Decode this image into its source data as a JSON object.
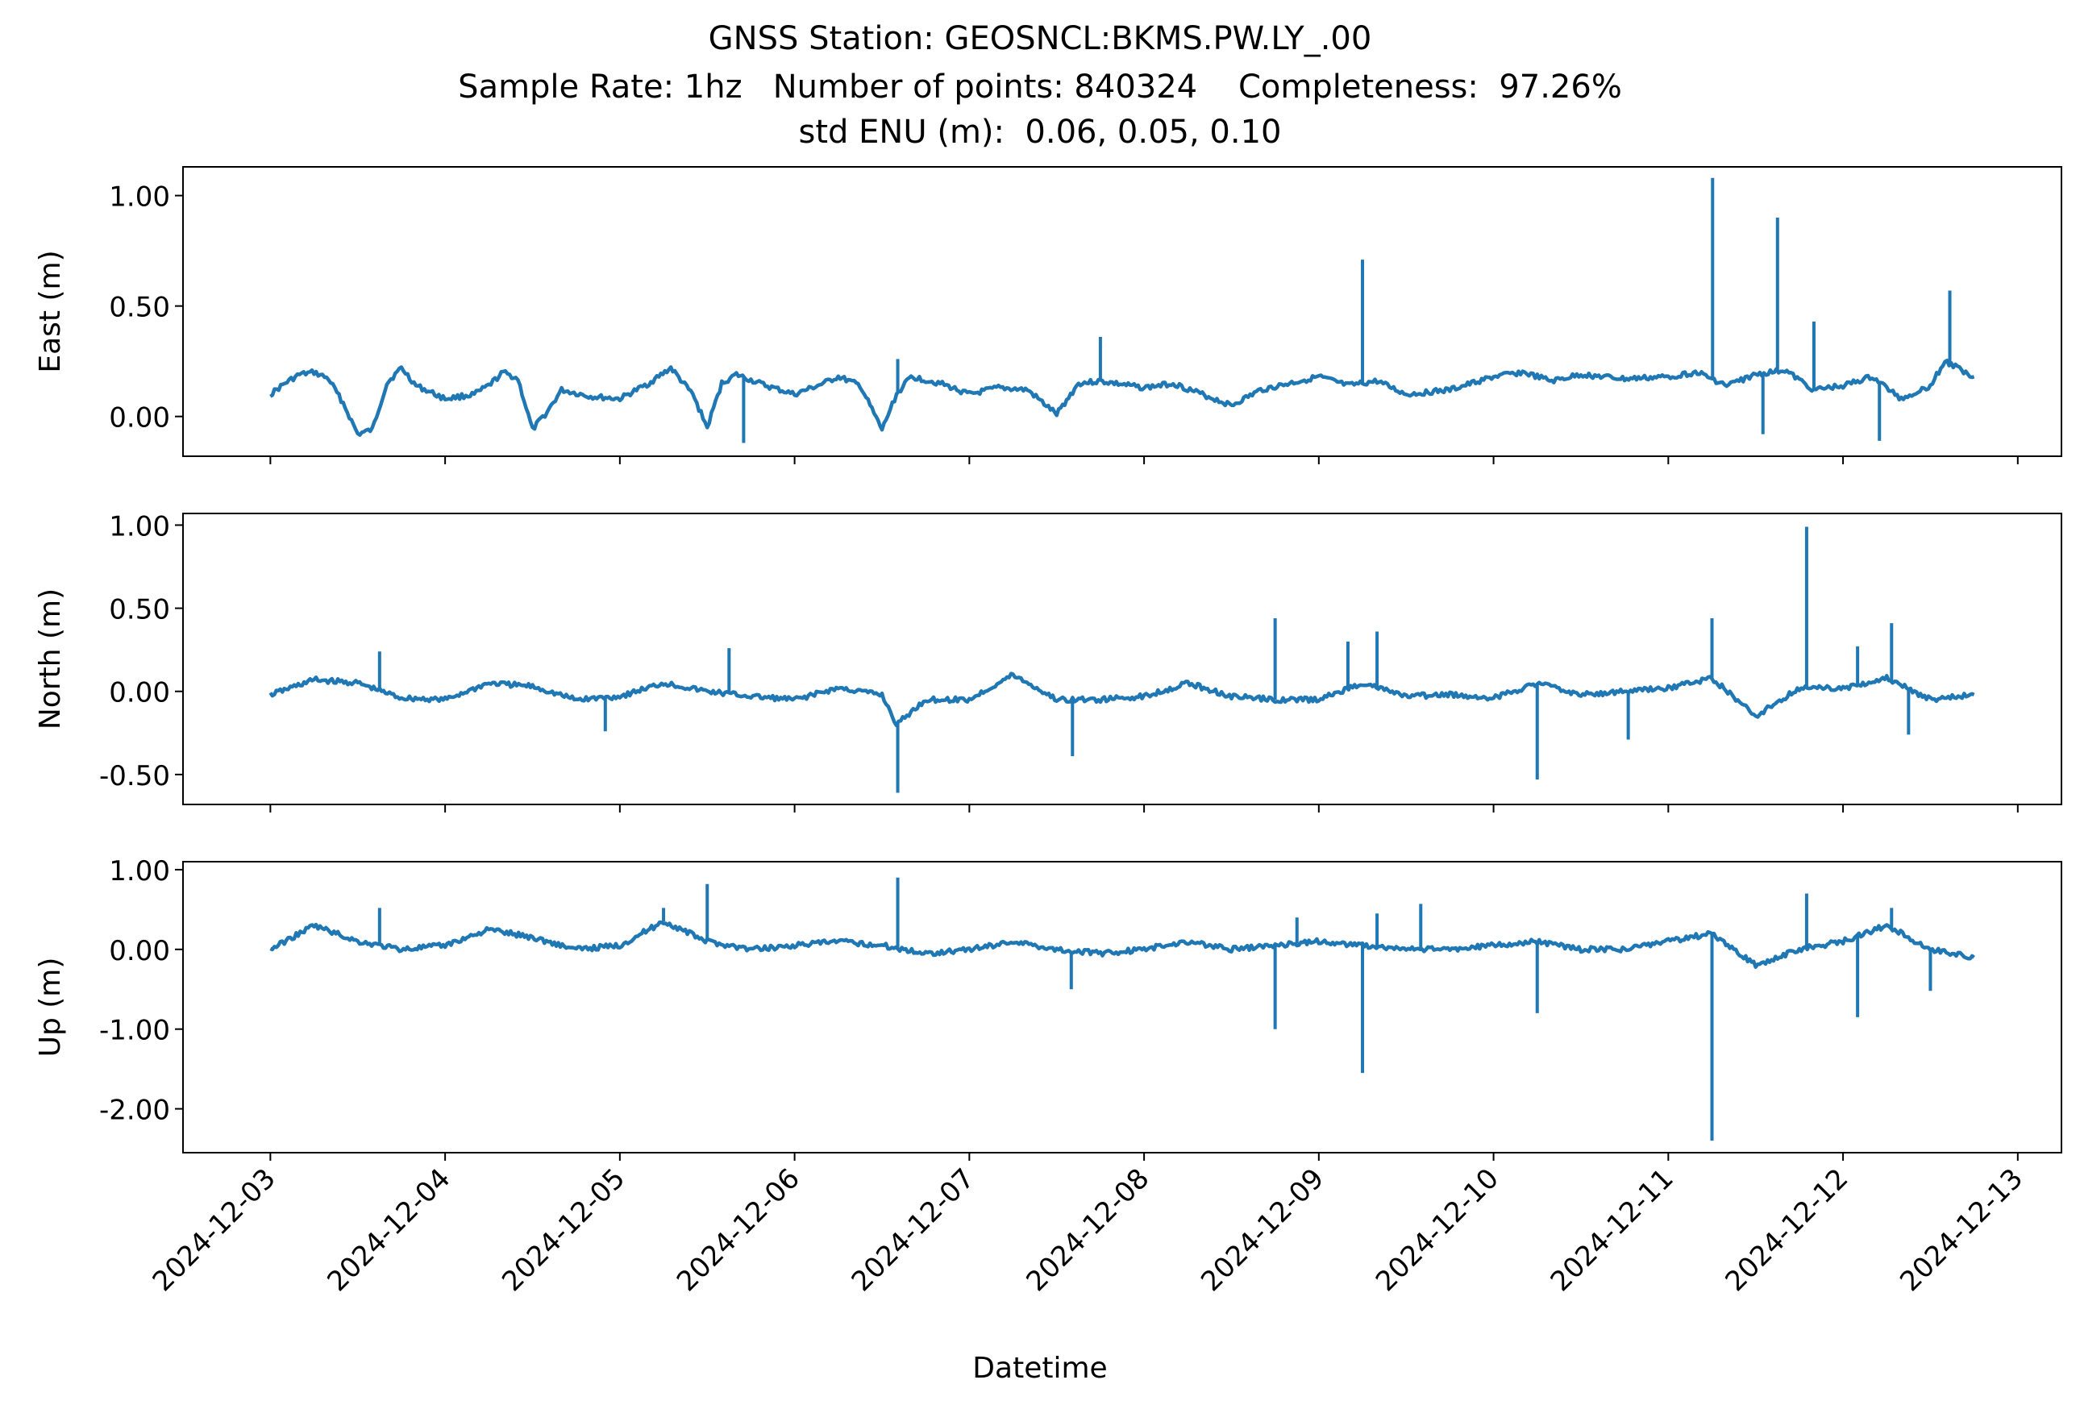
{
  "title": "GNSS Station: GEOSNCL:BKMS.PW.LY_.00",
  "subtitle": "Sample Rate: 1hz   Number of points: 840324    Completeness:  97.26%",
  "subtitle2": "std ENU (m):  0.06, 0.05, 0.10",
  "colors": {
    "series": "#1f77b4",
    "axes": "#000000",
    "background": "#ffffff"
  },
  "chart_data": [
    {
      "type": "line",
      "ylabel": "East (m)",
      "xlabel": "",
      "x_range": [
        "2024-12-03T00:00",
        "2024-12-12T18:00"
      ],
      "xlim": [
        "2024-12-02T12:00",
        "2024-12-13T06:00"
      ],
      "ylim": [
        -0.18,
        1.13
      ],
      "yticks": [
        0.0,
        0.5,
        1.0
      ],
      "ytick_labels": [
        "0.00",
        "0.50",
        "1.00"
      ],
      "grid": false,
      "series": [
        {
          "values": [
            [
              "2024-12-03T00:00",
              0.1
            ],
            [
              "2024-12-03T02:00",
              0.15
            ],
            [
              "2024-12-03T04:00",
              0.19
            ],
            [
              "2024-12-03T06:00",
              0.2
            ],
            [
              "2024-12-03T08:00",
              0.17
            ],
            [
              "2024-12-03T10:00",
              0.06
            ],
            [
              "2024-12-03T12:00",
              -0.08
            ],
            [
              "2024-12-03T14:00",
              -0.06
            ],
            [
              "2024-12-03T16:00",
              0.15
            ],
            [
              "2024-12-03T18:00",
              0.22
            ],
            [
              "2024-12-03T20:00",
              0.14
            ],
            [
              "2024-12-04T00:00",
              0.08
            ],
            [
              "2024-12-04T04:00",
              0.1
            ],
            [
              "2024-12-04T06:00",
              0.14
            ],
            [
              "2024-12-04T08:00",
              0.2
            ],
            [
              "2024-12-04T10:00",
              0.17
            ],
            [
              "2024-12-04T12:00",
              -0.06
            ],
            [
              "2024-12-04T14:00",
              0.02
            ],
            [
              "2024-12-04T16:00",
              0.12
            ],
            [
              "2024-12-04T20:00",
              0.09
            ],
            [
              "2024-12-05T00:00",
              0.08
            ],
            [
              "2024-12-05T04:00",
              0.15
            ],
            [
              "2024-12-05T07:00",
              0.22
            ],
            [
              "2024-12-05T10:00",
              0.1
            ],
            [
              "2024-12-05T12:00",
              -0.05
            ],
            [
              "2024-12-05T14:00",
              0.15
            ],
            [
              "2024-12-05T16:00",
              0.19
            ],
            [
              "2024-12-05T20:00",
              0.14
            ],
            [
              "2024-12-06T00:00",
              0.1
            ],
            [
              "2024-12-06T04:00",
              0.15
            ],
            [
              "2024-12-06T06:00",
              0.18
            ],
            [
              "2024-12-06T09:00",
              0.14
            ],
            [
              "2024-12-06T12:00",
              -0.06
            ],
            [
              "2024-12-06T14:00",
              0.1
            ],
            [
              "2024-12-06T16:00",
              0.18
            ],
            [
              "2024-12-06T20:00",
              0.15
            ],
            [
              "2024-12-07T00:00",
              0.1
            ],
            [
              "2024-12-07T04:00",
              0.13
            ],
            [
              "2024-12-07T08:00",
              0.12
            ],
            [
              "2024-12-07T12:00",
              0.01
            ],
            [
              "2024-12-07T15:00",
              0.15
            ],
            [
              "2024-12-07T18:00",
              0.16
            ],
            [
              "2024-12-08T00:00",
              0.13
            ],
            [
              "2024-12-08T04:00",
              0.15
            ],
            [
              "2024-12-08T08:00",
              0.1
            ],
            [
              "2024-12-08T12:00",
              0.05
            ],
            [
              "2024-12-08T16:00",
              0.12
            ],
            [
              "2024-12-08T20:00",
              0.15
            ],
            [
              "2024-12-09T00:00",
              0.18
            ],
            [
              "2024-12-09T04:00",
              0.14
            ],
            [
              "2024-12-09T08:00",
              0.16
            ],
            [
              "2024-12-09T12:00",
              0.1
            ],
            [
              "2024-12-09T18:00",
              0.12
            ],
            [
              "2024-12-10T00:00",
              0.18
            ],
            [
              "2024-12-10T04:00",
              0.2
            ],
            [
              "2024-12-10T08:00",
              0.16
            ],
            [
              "2024-12-10T12:00",
              0.19
            ],
            [
              "2024-12-10T18:00",
              0.17
            ],
            [
              "2024-12-11T00:00",
              0.18
            ],
            [
              "2024-12-11T04:00",
              0.2
            ],
            [
              "2024-12-11T08:00",
              0.14
            ],
            [
              "2024-12-11T12:00",
              0.19
            ],
            [
              "2024-12-11T16:00",
              0.21
            ],
            [
              "2024-12-11T20:00",
              0.12
            ],
            [
              "2024-12-12T00:00",
              0.14
            ],
            [
              "2024-12-12T04:00",
              0.18
            ],
            [
              "2024-12-12T08:00",
              0.08
            ],
            [
              "2024-12-12T12:00",
              0.14
            ],
            [
              "2024-12-12T14:00",
              0.25
            ],
            [
              "2024-12-12T18:00",
              0.18
            ]
          ],
          "spikes": [
            [
              "2024-12-06T14:10",
              0.26
            ],
            [
              "2024-12-07T18:00",
              0.36
            ],
            [
              "2024-12-09T06:00",
              0.71
            ],
            [
              "2024-12-11T06:05",
              1.08
            ],
            [
              "2024-12-11T15:00",
              0.9
            ],
            [
              "2024-12-11T20:00",
              0.43
            ],
            [
              "2024-12-12T14:40",
              0.57
            ],
            [
              "2024-12-05T17:00",
              -0.12
            ],
            [
              "2024-12-11T13:00",
              -0.08
            ],
            [
              "2024-12-12T05:00",
              -0.11
            ]
          ]
        }
      ]
    },
    {
      "type": "line",
      "ylabel": "North (m)",
      "xlabel": "",
      "xlim": [
        "2024-12-02T12:00",
        "2024-12-13T06:00"
      ],
      "ylim": [
        -0.68,
        1.07
      ],
      "yticks": [
        -0.5,
        0.0,
        0.5,
        1.0
      ],
      "ytick_labels": [
        "-0.50",
        "0.00",
        "0.50",
        "1.00"
      ],
      "grid": false,
      "series": [
        {
          "values": [
            [
              "2024-12-03T00:00",
              -0.02
            ],
            [
              "2024-12-03T06:00",
              0.07
            ],
            [
              "2024-12-03T12:00",
              0.05
            ],
            [
              "2024-12-03T18:00",
              -0.04
            ],
            [
              "2024-12-04T00:00",
              -0.05
            ],
            [
              "2024-12-04T06:00",
              0.05
            ],
            [
              "2024-12-04T12:00",
              0.03
            ],
            [
              "2024-12-04T18:00",
              -0.05
            ],
            [
              "2024-12-05T00:00",
              -0.03
            ],
            [
              "2024-12-05T06:00",
              0.05
            ],
            [
              "2024-12-05T12:00",
              0.0
            ],
            [
              "2024-12-05T18:00",
              -0.03
            ],
            [
              "2024-12-06T00:00",
              -0.05
            ],
            [
              "2024-12-06T06:00",
              0.02
            ],
            [
              "2024-12-06T12:00",
              -0.02
            ],
            [
              "2024-12-06T14:00",
              -0.2
            ],
            [
              "2024-12-06T18:00",
              -0.05
            ],
            [
              "2024-12-07T00:00",
              -0.05
            ],
            [
              "2024-12-07T06:00",
              0.1
            ],
            [
              "2024-12-07T12:00",
              -0.05
            ],
            [
              "2024-12-07T18:00",
              -0.05
            ],
            [
              "2024-12-08T00:00",
              -0.03
            ],
            [
              "2024-12-08T06:00",
              0.05
            ],
            [
              "2024-12-08T12:00",
              -0.03
            ],
            [
              "2024-12-08T18:00",
              -0.05
            ],
            [
              "2024-12-09T00:00",
              -0.05
            ],
            [
              "2024-12-09T06:00",
              0.05
            ],
            [
              "2024-12-09T12:00",
              -0.03
            ],
            [
              "2024-12-09T18:00",
              -0.02
            ],
            [
              "2024-12-10T00:00",
              -0.04
            ],
            [
              "2024-12-10T06:00",
              0.05
            ],
            [
              "2024-12-10T12:00",
              -0.02
            ],
            [
              "2024-12-10T18:00",
              0.0
            ],
            [
              "2024-12-11T00:00",
              0.02
            ],
            [
              "2024-12-11T06:00",
              0.08
            ],
            [
              "2024-12-11T12:00",
              -0.15
            ],
            [
              "2024-12-11T18:00",
              0.02
            ],
            [
              "2024-12-12T00:00",
              0.02
            ],
            [
              "2024-12-12T06:00",
              0.08
            ],
            [
              "2024-12-12T12:00",
              -0.05
            ],
            [
              "2024-12-12T18:00",
              -0.02
            ]
          ],
          "spikes": [
            [
              "2024-12-03T15:00",
              0.24
            ],
            [
              "2024-12-05T15:00",
              0.26
            ],
            [
              "2024-12-08T18:00",
              0.44
            ],
            [
              "2024-12-09T04:00",
              0.3
            ],
            [
              "2024-12-09T08:00",
              0.36
            ],
            [
              "2024-12-11T06:00",
              0.44
            ],
            [
              "2024-12-11T19:00",
              0.99
            ],
            [
              "2024-12-12T02:00",
              0.27
            ],
            [
              "2024-12-12T06:40",
              0.41
            ],
            [
              "2024-12-06T14:10",
              -0.61
            ],
            [
              "2024-12-07T14:10",
              -0.39
            ],
            [
              "2024-12-10T06:00",
              -0.53
            ],
            [
              "2024-12-10T18:30",
              -0.29
            ],
            [
              "2024-12-12T09:00",
              -0.26
            ],
            [
              "2024-12-04T22:00",
              -0.24
            ]
          ]
        }
      ]
    },
    {
      "type": "line",
      "ylabel": "Up (m)",
      "xlabel": "Datetime",
      "xlim": [
        "2024-12-02T12:00",
        "2024-12-13T06:00"
      ],
      "ylim": [
        -2.55,
        1.1
      ],
      "yticks": [
        -2.0,
        -1.0,
        0.0,
        1.0
      ],
      "ytick_labels": [
        "-2.00",
        "-1.00",
        "0.00",
        "1.00"
      ],
      "xtick_labels": [
        "2024-12-03",
        "2024-12-04",
        "2024-12-05",
        "2024-12-06",
        "2024-12-07",
        "2024-12-08",
        "2024-12-09",
        "2024-12-10",
        "2024-12-11",
        "2024-12-12",
        "2024-12-13"
      ],
      "grid": false,
      "series": [
        {
          "values": [
            [
              "2024-12-03T00:00",
              0.0
            ],
            [
              "2024-12-03T06:00",
              0.3
            ],
            [
              "2024-12-03T12:00",
              0.1
            ],
            [
              "2024-12-03T18:00",
              0.0
            ],
            [
              "2024-12-04T00:00",
              0.05
            ],
            [
              "2024-12-04T06:00",
              0.25
            ],
            [
              "2024-12-04T12:00",
              0.15
            ],
            [
              "2024-12-04T18:00",
              0.0
            ],
            [
              "2024-12-05T00:00",
              0.05
            ],
            [
              "2024-12-05T06:00",
              0.35
            ],
            [
              "2024-12-05T12:00",
              0.1
            ],
            [
              "2024-12-05T18:00",
              0.0
            ],
            [
              "2024-12-06T00:00",
              0.05
            ],
            [
              "2024-12-06T06:00",
              0.1
            ],
            [
              "2024-12-06T12:00",
              0.05
            ],
            [
              "2024-12-06T18:00",
              -0.05
            ],
            [
              "2024-12-07T00:00",
              0.0
            ],
            [
              "2024-12-07T06:00",
              0.1
            ],
            [
              "2024-12-07T12:00",
              0.0
            ],
            [
              "2024-12-07T18:00",
              -0.05
            ],
            [
              "2024-12-08T00:00",
              0.0
            ],
            [
              "2024-12-08T06:00",
              0.1
            ],
            [
              "2024-12-08T12:00",
              0.0
            ],
            [
              "2024-12-08T18:00",
              0.05
            ],
            [
              "2024-12-09T00:00",
              0.1
            ],
            [
              "2024-12-09T06:00",
              0.05
            ],
            [
              "2024-12-09T12:00",
              0.0
            ],
            [
              "2024-12-09T18:00",
              0.0
            ],
            [
              "2024-12-10T00:00",
              0.05
            ],
            [
              "2024-12-10T06:00",
              0.1
            ],
            [
              "2024-12-10T12:00",
              0.0
            ],
            [
              "2024-12-10T18:00",
              0.0
            ],
            [
              "2024-12-11T00:00",
              0.1
            ],
            [
              "2024-12-11T06:00",
              0.2
            ],
            [
              "2024-12-11T12:00",
              -0.2
            ],
            [
              "2024-12-11T18:00",
              0.0
            ],
            [
              "2024-12-12T00:00",
              0.1
            ],
            [
              "2024-12-12T06:00",
              0.3
            ],
            [
              "2024-12-12T12:00",
              0.0
            ],
            [
              "2024-12-12T18:00",
              -0.1
            ]
          ],
          "spikes": [
            [
              "2024-12-03T15:00",
              0.52
            ],
            [
              "2024-12-05T06:00",
              0.52
            ],
            [
              "2024-12-05T12:00",
              0.82
            ],
            [
              "2024-12-06T14:10",
              0.9
            ],
            [
              "2024-12-08T18:00",
              -1.0
            ],
            [
              "2024-12-09T06:00",
              -1.55
            ],
            [
              "2024-12-09T08:00",
              0.45
            ],
            [
              "2024-12-09T14:00",
              0.57
            ],
            [
              "2024-12-10T06:00",
              -0.8
            ],
            [
              "2024-12-11T06:00",
              -2.4
            ],
            [
              "2024-12-11T19:00",
              0.7
            ],
            [
              "2024-12-12T02:00",
              -0.85
            ],
            [
              "2024-12-12T06:40",
              0.52
            ],
            [
              "2024-12-08T21:00",
              0.4
            ],
            [
              "2024-12-07T14:00",
              -0.5
            ],
            [
              "2024-12-12T12:00",
              -0.52
            ]
          ]
        }
      ]
    }
  ]
}
